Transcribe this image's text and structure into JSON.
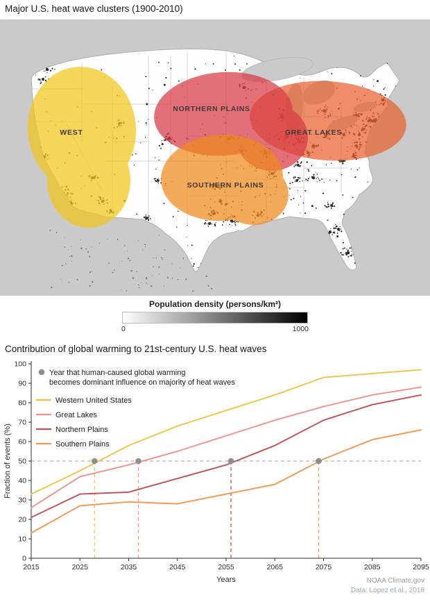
{
  "map": {
    "title": "Major U.S. heat wave clusters (1900-2010)",
    "regions": [
      {
        "id": "west",
        "label": "WEST",
        "fill": "#F2C71B"
      },
      {
        "id": "great-lakes",
        "label": "GREAT LAKES",
        "fill": "#E8632F"
      },
      {
        "id": "northern-plains",
        "label": "NORTHERN PLAINS",
        "fill": "#D93A46"
      },
      {
        "id": "southern-plains",
        "label": "SOUTHERN PLAINS",
        "fill": "#F08A1D"
      }
    ],
    "density_legend": {
      "title": "Population density (persons/km²)",
      "min_label": "0",
      "max_label": "1000"
    }
  },
  "chart_data": {
    "type": "line",
    "title": "Contribution of global warming to 21st-century U.S. heat waves",
    "xlabel": "Years",
    "ylabel": "Fraction of events (%)",
    "xlim": [
      2015,
      2095
    ],
    "ylim": [
      0,
      100
    ],
    "x_ticks": [
      2015,
      2025,
      2035,
      2045,
      2055,
      2065,
      2075,
      2085,
      2095
    ],
    "y_ticks": [
      0,
      10,
      20,
      30,
      40,
      50,
      60,
      70,
      80,
      90,
      100
    ],
    "grid": false,
    "legend_position": "top-left",
    "x": [
      2015,
      2025,
      2035,
      2045,
      2055,
      2065,
      2075,
      2085,
      2095
    ],
    "series": [
      {
        "name": "Western United States",
        "color": "#F5C242",
        "values": [
          33,
          45,
          58,
          68,
          76,
          84,
          93,
          95,
          97
        ]
      },
      {
        "name": "Great Lakes",
        "color": "#F2918C",
        "values": [
          26,
          42,
          48,
          55,
          63,
          71,
          78,
          84,
          88
        ]
      },
      {
        "name": "Northern Plains",
        "color": "#C25055",
        "values": [
          21,
          33,
          34,
          41,
          48,
          58,
          71,
          79,
          84
        ]
      },
      {
        "name": "Southern Plains",
        "color": "#F8954D",
        "values": [
          13,
          27,
          29,
          28,
          33,
          38,
          51,
          61,
          66
        ]
      }
    ],
    "threshold_line": {
      "value": 50,
      "color": "#b3b3b3"
    },
    "markers": {
      "color": "#8f8f8f",
      "note_line1": "Year that human-caused global warming",
      "note_line2": "becomes dominant influence on majority of heat waves",
      "points": [
        {
          "series": "Western United States",
          "year": 2028,
          "value": 50
        },
        {
          "series": "Great Lakes",
          "year": 2037,
          "value": 50
        },
        {
          "series": "Northern Plains",
          "year": 2056,
          "value": 50
        },
        {
          "series": "Southern Plains",
          "year": 2074,
          "value": 50
        }
      ]
    },
    "attribution": [
      "NOAA Climate.gov",
      "Data: Lopez et al., 2018"
    ]
  }
}
